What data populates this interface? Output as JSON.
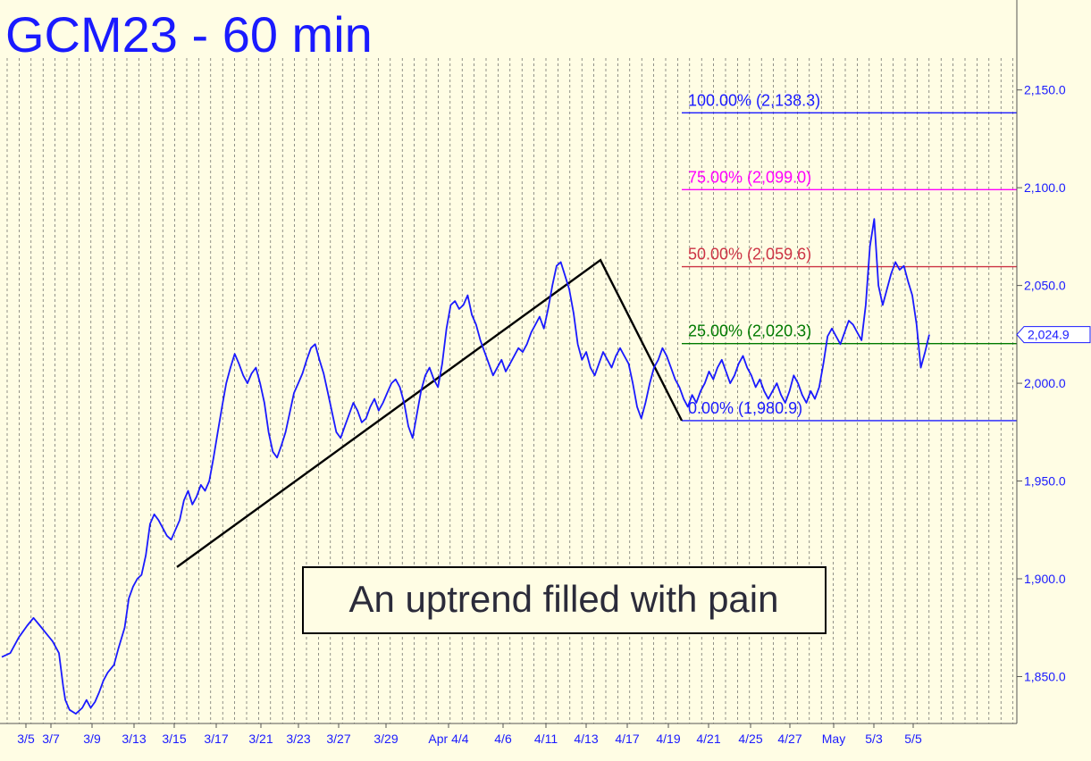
{
  "chart_data": {
    "type": "line",
    "title": "GCM23 - 60 min",
    "annotation": "An uptrend filled with pain",
    "timeframe": "60 min",
    "line_color": "#1a1aff",
    "ylim": [
      1826,
      2196
    ],
    "yticks": [
      {
        "value": 1850,
        "label": "1,850.0"
      },
      {
        "value": 1900,
        "label": "1,900.0"
      },
      {
        "value": 1950,
        "label": "1,950.0"
      },
      {
        "value": 2000,
        "label": "2,000.0"
      },
      {
        "value": 2050,
        "label": "2,050.0"
      },
      {
        "value": 2100,
        "label": "2,100.0"
      },
      {
        "value": 2150,
        "label": "2,150.0"
      }
    ],
    "xticks": [
      "3/5",
      "3/7",
      "3/9",
      "3/13",
      "3/15",
      "3/17",
      "3/21",
      "3/23",
      "3/27",
      "3/29",
      "Apr 4/4",
      "4/6",
      "4/11",
      "4/13",
      "4/17",
      "4/19",
      "4/21",
      "4/25",
      "4/27",
      "May",
      "5/3",
      "5/5"
    ],
    "last_price": {
      "value": 2024.9,
      "label": "2,024.9"
    },
    "fib_levels": [
      {
        "label": "100.00% (2,138.3)",
        "value": 2138.3,
        "color": "#1a1aff"
      },
      {
        "label": "75.00% (2,099.0)",
        "value": 2099.0,
        "color": "#ff00ff"
      },
      {
        "label": "50.00% (2,059.6)",
        "value": 2059.6,
        "color": "#cc3344"
      },
      {
        "label": "25.00% (2,020.3)",
        "value": 2020.3,
        "color": "#007a00"
      },
      {
        "label": "0.00% (1,980.9)",
        "value": 1980.9,
        "color": "#1a1aff"
      }
    ],
    "pattern_points": [
      {
        "date": "3/15",
        "value": 1906
      },
      {
        "date": "4/13",
        "value": 2063
      },
      {
        "date": "4/20",
        "value": 1980.9
      }
    ],
    "series": [
      {
        "values": [
          [
            0,
            1860
          ],
          [
            0.4,
            1862
          ],
          [
            0.8,
            1870
          ],
          [
            1.2,
            1876
          ],
          [
            1.5,
            1880
          ],
          [
            1.8,
            1876
          ],
          [
            2.1,
            1872
          ],
          [
            2.4,
            1868
          ],
          [
            2.7,
            1862
          ],
          [
            2.9,
            1845
          ],
          [
            3.0,
            1838
          ],
          [
            3.2,
            1833
          ],
          [
            3.5,
            1831
          ],
          [
            3.8,
            1834
          ],
          [
            4.0,
            1838
          ],
          [
            4.2,
            1834
          ],
          [
            4.4,
            1837
          ],
          [
            4.6,
            1842
          ],
          [
            4.8,
            1848
          ],
          [
            5.0,
            1852
          ],
          [
            5.3,
            1856
          ],
          [
            5.5,
            1864
          ],
          [
            5.8,
            1875
          ],
          [
            6.0,
            1890
          ],
          [
            6.2,
            1896
          ],
          [
            6.4,
            1900
          ],
          [
            6.6,
            1902
          ],
          [
            6.8,
            1912
          ],
          [
            7.0,
            1928
          ],
          [
            7.2,
            1933
          ],
          [
            7.4,
            1930
          ],
          [
            7.6,
            1926
          ],
          [
            7.8,
            1922
          ],
          [
            8.0,
            1920
          ],
          [
            8.2,
            1925
          ],
          [
            8.4,
            1930
          ],
          [
            8.6,
            1940
          ],
          [
            8.8,
            1945
          ],
          [
            9.0,
            1938
          ],
          [
            9.2,
            1942
          ],
          [
            9.4,
            1948
          ],
          [
            9.6,
            1945
          ],
          [
            9.8,
            1950
          ],
          [
            10.0,
            1962
          ],
          [
            10.2,
            1975
          ],
          [
            10.4,
            1988
          ],
          [
            10.6,
            2000
          ],
          [
            10.8,
            2008
          ],
          [
            11.0,
            2015
          ],
          [
            11.2,
            2010
          ],
          [
            11.4,
            2004
          ],
          [
            11.6,
            2000
          ],
          [
            11.8,
            2005
          ],
          [
            12.0,
            2008
          ],
          [
            12.2,
            2000
          ],
          [
            12.4,
            1990
          ],
          [
            12.6,
            1975
          ],
          [
            12.8,
            1965
          ],
          [
            13.0,
            1962
          ],
          [
            13.2,
            1968
          ],
          [
            13.4,
            1975
          ],
          [
            13.6,
            1985
          ],
          [
            13.8,
            1995
          ],
          [
            14.0,
            2000
          ],
          [
            14.2,
            2005
          ],
          [
            14.4,
            2012
          ],
          [
            14.6,
            2018
          ],
          [
            14.8,
            2020
          ],
          [
            15.0,
            2012
          ],
          [
            15.2,
            2005
          ],
          [
            15.4,
            1995
          ],
          [
            15.6,
            1985
          ],
          [
            15.8,
            1975
          ],
          [
            16.0,
            1972
          ],
          [
            16.2,
            1978
          ],
          [
            16.4,
            1984
          ],
          [
            16.6,
            1990
          ],
          [
            16.8,
            1986
          ],
          [
            17.0,
            1980
          ],
          [
            17.2,
            1982
          ],
          [
            17.4,
            1988
          ],
          [
            17.6,
            1992
          ],
          [
            17.8,
            1986
          ],
          [
            18.0,
            1990
          ],
          [
            18.2,
            1995
          ],
          [
            18.4,
            2000
          ],
          [
            18.6,
            2002
          ],
          [
            18.8,
            1998
          ],
          [
            19.0,
            1990
          ],
          [
            19.2,
            1978
          ],
          [
            19.4,
            1972
          ],
          [
            19.6,
            1984
          ],
          [
            19.8,
            1996
          ],
          [
            20.0,
            2004
          ],
          [
            20.2,
            2008
          ],
          [
            20.4,
            2002
          ],
          [
            20.6,
            1998
          ],
          [
            20.8,
            2010
          ],
          [
            21.0,
            2028
          ],
          [
            21.2,
            2040
          ],
          [
            21.4,
            2042
          ],
          [
            21.6,
            2038
          ],
          [
            21.8,
            2040
          ],
          [
            22.0,
            2045
          ],
          [
            22.2,
            2035
          ],
          [
            22.4,
            2030
          ],
          [
            22.6,
            2022
          ],
          [
            22.8,
            2016
          ],
          [
            23.0,
            2010
          ],
          [
            23.2,
            2004
          ],
          [
            23.4,
            2008
          ],
          [
            23.6,
            2012
          ],
          [
            23.8,
            2006
          ],
          [
            24.0,
            2010
          ],
          [
            24.2,
            2014
          ],
          [
            24.4,
            2018
          ],
          [
            24.6,
            2016
          ],
          [
            24.8,
            2020
          ],
          [
            25.0,
            2026
          ],
          [
            25.2,
            2030
          ],
          [
            25.4,
            2034
          ],
          [
            25.6,
            2028
          ],
          [
            25.8,
            2038
          ],
          [
            26.0,
            2050
          ],
          [
            26.2,
            2060
          ],
          [
            26.4,
            2062
          ],
          [
            26.6,
            2055
          ],
          [
            26.8,
            2048
          ],
          [
            27.0,
            2036
          ],
          [
            27.2,
            2020
          ],
          [
            27.4,
            2012
          ],
          [
            27.6,
            2016
          ],
          [
            27.8,
            2008
          ],
          [
            28.0,
            2004
          ],
          [
            28.2,
            2010
          ],
          [
            28.4,
            2016
          ],
          [
            28.6,
            2012
          ],
          [
            28.8,
            2008
          ],
          [
            29.0,
            2014
          ],
          [
            29.2,
            2018
          ],
          [
            29.4,
            2014
          ],
          [
            29.6,
            2010
          ],
          [
            29.8,
            2000
          ],
          [
            30.0,
            1988
          ],
          [
            30.2,
            1982
          ],
          [
            30.4,
            1990
          ],
          [
            30.6,
            2000
          ],
          [
            30.8,
            2008
          ],
          [
            31.0,
            2012
          ],
          [
            31.2,
            2018
          ],
          [
            31.4,
            2014
          ],
          [
            31.6,
            2008
          ],
          [
            31.8,
            2002
          ],
          [
            32.0,
            1998
          ],
          [
            32.2,
            1992
          ],
          [
            32.4,
            1988
          ],
          [
            32.6,
            1994
          ],
          [
            32.8,
            1990
          ],
          [
            33.0,
            1996
          ],
          [
            33.2,
            2000
          ],
          [
            33.4,
            2006
          ],
          [
            33.6,
            2002
          ],
          [
            33.8,
            2008
          ],
          [
            34.0,
            2012
          ],
          [
            34.2,
            2006
          ],
          [
            34.4,
            2000
          ],
          [
            34.6,
            2004
          ],
          [
            34.8,
            2010
          ],
          [
            35.0,
            2014
          ],
          [
            35.2,
            2008
          ],
          [
            35.4,
            2004
          ],
          [
            35.6,
            1998
          ],
          [
            35.8,
            2002
          ],
          [
            36.0,
            1996
          ],
          [
            36.2,
            1992
          ],
          [
            36.4,
            1996
          ],
          [
            36.6,
            2000
          ],
          [
            36.8,
            1994
          ],
          [
            37.0,
            1990
          ],
          [
            37.2,
            1996
          ],
          [
            37.4,
            2004
          ],
          [
            37.6,
            2000
          ],
          [
            37.8,
            1994
          ],
          [
            38.0,
            1990
          ],
          [
            38.2,
            1996
          ],
          [
            38.4,
            1992
          ],
          [
            38.6,
            1998
          ],
          [
            38.8,
            2010
          ],
          [
            39.0,
            2024
          ],
          [
            39.2,
            2028
          ],
          [
            39.4,
            2024
          ],
          [
            39.6,
            2020
          ],
          [
            39.8,
            2026
          ],
          [
            40.0,
            2032
          ],
          [
            40.2,
            2030
          ],
          [
            40.4,
            2026
          ],
          [
            40.6,
            2022
          ],
          [
            40.8,
            2040
          ],
          [
            41.0,
            2070
          ],
          [
            41.2,
            2084
          ],
          [
            41.4,
            2050
          ],
          [
            41.6,
            2040
          ],
          [
            41.8,
            2048
          ],
          [
            42.0,
            2056
          ],
          [
            42.2,
            2062
          ],
          [
            42.4,
            2058
          ],
          [
            42.6,
            2060
          ],
          [
            42.8,
            2052
          ],
          [
            43.0,
            2045
          ],
          [
            43.2,
            2030
          ],
          [
            43.4,
            2008
          ],
          [
            43.6,
            2016
          ],
          [
            43.8,
            2024.9
          ]
        ]
      }
    ],
    "grid": "vertical dashed at each date tick"
  }
}
